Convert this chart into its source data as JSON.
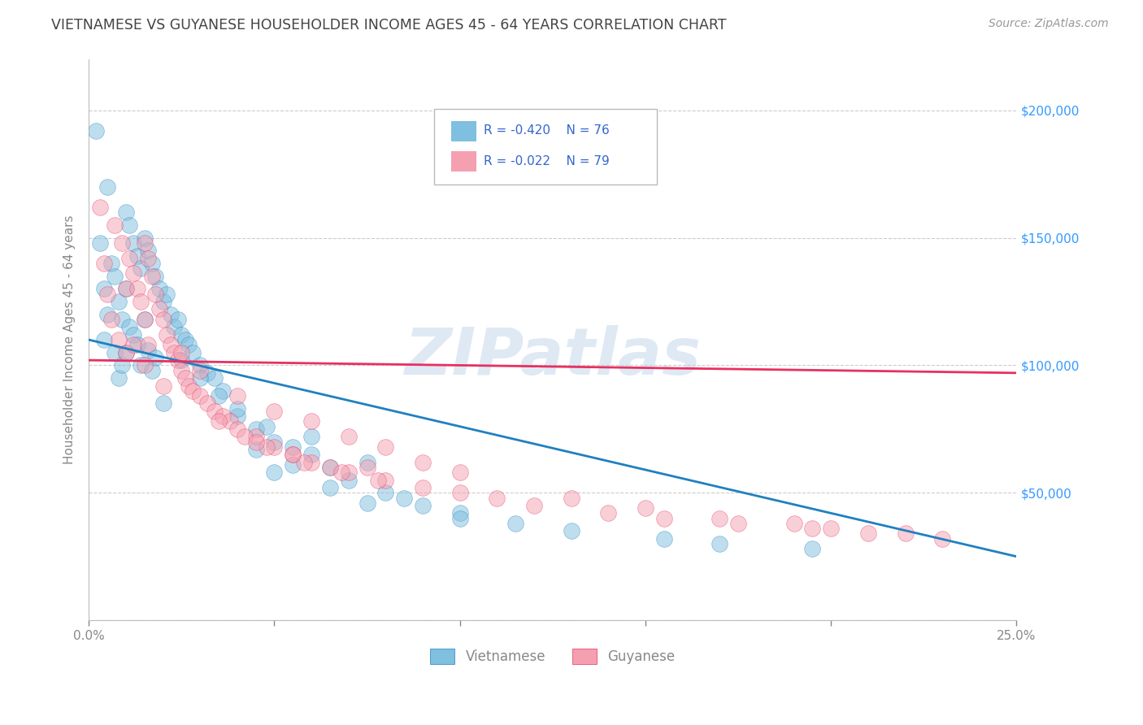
{
  "title": "VIETNAMESE VS GUYANESE HOUSEHOLDER INCOME AGES 45 - 64 YEARS CORRELATION CHART",
  "source": "Source: ZipAtlas.com",
  "ylabel": "Householder Income Ages 45 - 64 years",
  "xlim": [
    0.0,
    0.25
  ],
  "ylim": [
    0,
    220000
  ],
  "xticks": [
    0.0,
    0.05,
    0.1,
    0.15,
    0.2,
    0.25
  ],
  "xticklabels": [
    "0.0%",
    "",
    "",
    "",
    "",
    "25.0%"
  ],
  "yticks": [
    0,
    50000,
    100000,
    150000,
    200000
  ],
  "right_yticklabels": [
    "",
    "$50,000",
    "$100,000",
    "$150,000",
    "$200,000"
  ],
  "color_vietnamese": "#7fbfdf",
  "color_guyanese": "#f4a0b0",
  "color_vietnamese_line": "#2080c0",
  "color_guyanese_line": "#e83060",
  "watermark": "ZIPatlas",
  "title_color": "#444444",
  "source_color": "#999999",
  "tick_color": "#888888",
  "viet_line_x": [
    0.0,
    0.25
  ],
  "viet_line_y": [
    110000,
    25000
  ],
  "guy_line_x": [
    0.0,
    0.25
  ],
  "guy_line_y": [
    102000,
    97000
  ],
  "vietnamese_scatter_x": [
    0.002,
    0.003,
    0.004,
    0.004,
    0.005,
    0.005,
    0.006,
    0.007,
    0.007,
    0.008,
    0.008,
    0.009,
    0.009,
    0.01,
    0.01,
    0.01,
    0.011,
    0.011,
    0.012,
    0.012,
    0.013,
    0.013,
    0.014,
    0.014,
    0.015,
    0.015,
    0.016,
    0.016,
    0.017,
    0.017,
    0.018,
    0.018,
    0.019,
    0.02,
    0.021,
    0.022,
    0.023,
    0.024,
    0.025,
    0.026,
    0.027,
    0.028,
    0.03,
    0.032,
    0.034,
    0.036,
    0.04,
    0.045,
    0.05,
    0.055,
    0.06,
    0.065,
    0.07,
    0.08,
    0.09,
    0.1,
    0.115,
    0.13,
    0.155,
    0.17,
    0.195,
    0.06,
    0.075,
    0.035,
    0.048,
    0.025,
    0.03,
    0.04,
    0.085,
    0.1,
    0.05,
    0.065,
    0.075,
    0.045,
    0.055,
    0.02
  ],
  "vietnamese_scatter_y": [
    192000,
    148000,
    130000,
    110000,
    170000,
    120000,
    140000,
    135000,
    105000,
    125000,
    95000,
    118000,
    100000,
    160000,
    130000,
    105000,
    155000,
    115000,
    148000,
    112000,
    143000,
    108000,
    138000,
    100000,
    150000,
    118000,
    145000,
    106000,
    140000,
    98000,
    135000,
    103000,
    130000,
    125000,
    128000,
    120000,
    115000,
    118000,
    112000,
    110000,
    108000,
    105000,
    100000,
    97000,
    95000,
    90000,
    80000,
    75000,
    70000,
    68000,
    65000,
    60000,
    55000,
    50000,
    45000,
    42000,
    38000,
    35000,
    32000,
    30000,
    28000,
    72000,
    62000,
    88000,
    76000,
    102000,
    95000,
    83000,
    48000,
    40000,
    58000,
    52000,
    46000,
    67000,
    61000,
    85000
  ],
  "guyanese_scatter_x": [
    0.003,
    0.004,
    0.005,
    0.006,
    0.007,
    0.008,
    0.009,
    0.01,
    0.01,
    0.011,
    0.012,
    0.012,
    0.013,
    0.014,
    0.015,
    0.015,
    0.016,
    0.016,
    0.017,
    0.018,
    0.019,
    0.02,
    0.021,
    0.022,
    0.023,
    0.024,
    0.025,
    0.026,
    0.027,
    0.028,
    0.03,
    0.032,
    0.034,
    0.036,
    0.038,
    0.04,
    0.045,
    0.05,
    0.055,
    0.06,
    0.065,
    0.07,
    0.08,
    0.09,
    0.1,
    0.11,
    0.12,
    0.14,
    0.155,
    0.175,
    0.195,
    0.21,
    0.23,
    0.035,
    0.042,
    0.048,
    0.058,
    0.068,
    0.078,
    0.025,
    0.03,
    0.04,
    0.05,
    0.06,
    0.07,
    0.08,
    0.09,
    0.1,
    0.13,
    0.15,
    0.17,
    0.19,
    0.2,
    0.22,
    0.015,
    0.02,
    0.045,
    0.055,
    0.075
  ],
  "guyanese_scatter_y": [
    162000,
    140000,
    128000,
    118000,
    155000,
    110000,
    148000,
    130000,
    105000,
    142000,
    136000,
    108000,
    130000,
    125000,
    148000,
    118000,
    142000,
    108000,
    135000,
    128000,
    122000,
    118000,
    112000,
    108000,
    105000,
    102000,
    98000,
    95000,
    92000,
    90000,
    88000,
    85000,
    82000,
    80000,
    78000,
    75000,
    72000,
    68000,
    65000,
    62000,
    60000,
    58000,
    55000,
    52000,
    50000,
    48000,
    45000,
    42000,
    40000,
    38000,
    36000,
    34000,
    32000,
    78000,
    72000,
    68000,
    62000,
    58000,
    55000,
    105000,
    98000,
    88000,
    82000,
    78000,
    72000,
    68000,
    62000,
    58000,
    48000,
    44000,
    40000,
    38000,
    36000,
    34000,
    100000,
    92000,
    70000,
    65000,
    60000
  ]
}
